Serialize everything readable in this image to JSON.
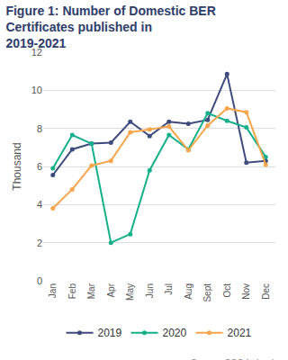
{
  "chart_data": {
    "type": "line",
    "title": "Figure 1: Number of Domestic BER Certificates published in 2019-2021",
    "y_label": "Thousand",
    "source": "Source: CSO Ireland",
    "categories": [
      "Jan",
      "Feb",
      "Mar",
      "Apr",
      "May",
      "Jun",
      "Jul",
      "Aug",
      "Sept",
      "Oct",
      "Nov",
      "Dec"
    ],
    "series": [
      {
        "name": "2019",
        "color": "#3c4a7d",
        "values": [
          5.55,
          6.9,
          7.2,
          7.25,
          8.35,
          7.6,
          8.35,
          8.25,
          8.45,
          10.85,
          6.2,
          6.3
        ]
      },
      {
        "name": "2020",
        "color": "#13b08a",
        "values": [
          5.9,
          7.65,
          7.2,
          2.0,
          2.45,
          5.8,
          7.65,
          6.9,
          8.8,
          8.4,
          8.05,
          6.5
        ]
      },
      {
        "name": "2021",
        "color": "#f6a54c",
        "values": [
          3.8,
          4.8,
          6.05,
          6.3,
          7.8,
          7.95,
          8.1,
          6.85,
          8.15,
          9.05,
          8.85,
          6.1
        ]
      }
    ],
    "ylim": [
      0,
      12
    ],
    "yticks": [
      0,
      2,
      4,
      6,
      8,
      10,
      12
    ],
    "grid": true,
    "legend": "bottom",
    "marker": "circle",
    "line_style": "solid"
  }
}
